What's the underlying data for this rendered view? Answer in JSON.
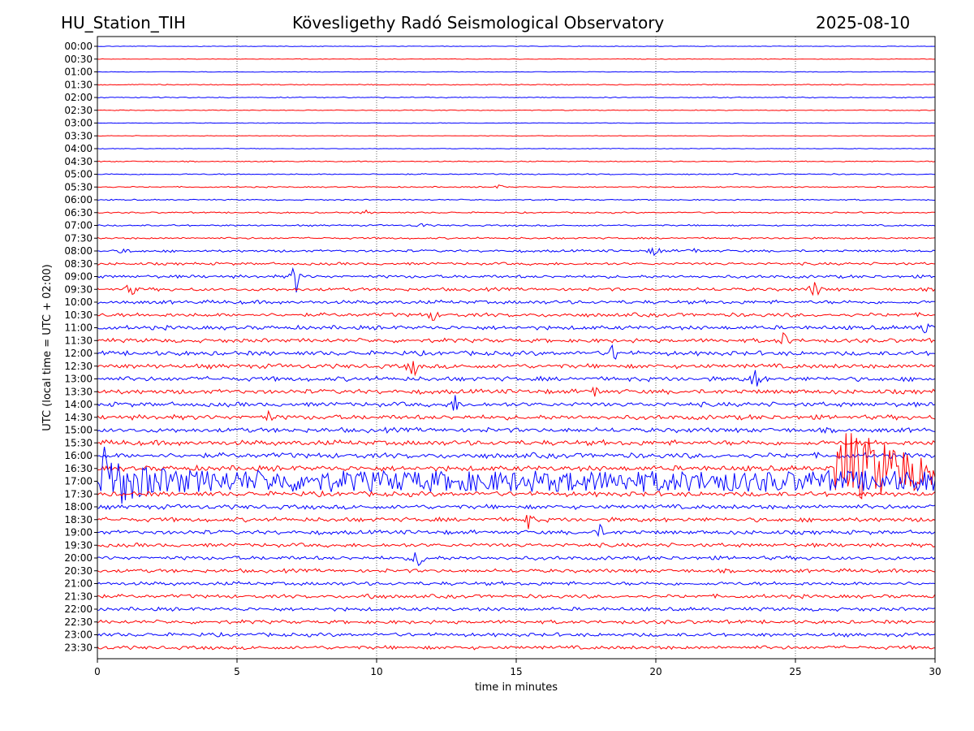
{
  "header": {
    "station": "HU_Station_TIH",
    "observatory": "Kövesligethy Radó Seismological Observatory",
    "date": "2025-08-10"
  },
  "chart_data": {
    "type": "line",
    "title": "Kövesligethy Radó Seismological Observatory",
    "xlabel": "time in minutes",
    "ylabel": "UTC (local time = UTC + 02:00)",
    "xlim": [
      0,
      30
    ],
    "x_ticks": [
      "0",
      "5",
      "10",
      "15",
      "20",
      "25",
      "30"
    ],
    "grid": "vertical dotted lines at each x tick",
    "row_labels": [
      "00:00",
      "00:30",
      "01:00",
      "01:30",
      "02:00",
      "02:30",
      "03:00",
      "03:30",
      "04:00",
      "04:30",
      "05:00",
      "05:30",
      "06:00",
      "06:30",
      "07:00",
      "07:30",
      "08:00",
      "08:30",
      "09:00",
      "09:30",
      "10:00",
      "10:30",
      "11:00",
      "11:30",
      "12:00",
      "12:30",
      "13:00",
      "13:30",
      "14:00",
      "14:30",
      "15:00",
      "15:30",
      "16:00",
      "16:30",
      "17:00",
      "17:30",
      "18:00",
      "18:30",
      "19:00",
      "19:30",
      "20:00",
      "20:30",
      "21:00",
      "21:30",
      "22:00",
      "22:30",
      "23:00",
      "23:30"
    ],
    "colors": {
      "even_rows": "#0000ff",
      "odd_rows": "#ff0000"
    },
    "noise_levels": [
      0.3,
      0.3,
      0.3,
      0.5,
      0.5,
      0.4,
      0.3,
      0.3,
      0.3,
      0.5,
      0.6,
      0.6,
      0.6,
      0.7,
      0.8,
      0.9,
      1.2,
      1.3,
      1.5,
      1.6,
      1.8,
      1.9,
      2.0,
      2.0,
      2.2,
      2.2,
      2.2,
      2.2,
      2.2,
      2.3,
      2.3,
      2.5,
      2.6,
      2.6,
      2.6,
      2.4,
      2.2,
      2.1,
      2.0,
      1.9,
      1.9,
      1.8,
      1.8,
      1.8,
      1.8,
      1.8,
      1.8,
      1.8
    ],
    "events": [
      {
        "row": 16,
        "minute": 20.0,
        "amp": 10
      },
      {
        "row": 16,
        "minute": 21.3,
        "amp": 6
      },
      {
        "row": 16,
        "minute": 1.0,
        "amp": 4
      },
      {
        "row": 18,
        "minute": 7.1,
        "amp": 24
      },
      {
        "row": 19,
        "minute": 1.2,
        "amp": 10
      },
      {
        "row": 19,
        "minute": 25.7,
        "amp": 14
      },
      {
        "row": 21,
        "minute": 12.0,
        "amp": 8
      },
      {
        "row": 22,
        "minute": 29.6,
        "amp": 12
      },
      {
        "row": 23,
        "minute": 24.6,
        "amp": 12
      },
      {
        "row": 24,
        "minute": 18.5,
        "amp": 14
      },
      {
        "row": 25,
        "minute": 11.3,
        "amp": 16
      },
      {
        "row": 26,
        "minute": 23.6,
        "amp": 20
      },
      {
        "row": 27,
        "minute": 17.8,
        "amp": 8
      },
      {
        "row": 28,
        "minute": 12.8,
        "amp": 12
      },
      {
        "row": 29,
        "minute": 6.1,
        "amp": 8
      },
      {
        "row": 37,
        "minute": 15.4,
        "amp": 14
      },
      {
        "row": 38,
        "minute": 18.0,
        "amp": 8
      },
      {
        "row": 40,
        "minute": 11.5,
        "amp": 18
      },
      {
        "row": 43,
        "minute": 9.7,
        "amp": 6
      },
      {
        "row": 14,
        "minute": 11.6,
        "amp": 4
      },
      {
        "row": 11,
        "minute": 14.4,
        "amp": 3
      },
      {
        "row": 13,
        "minute": 9.6,
        "amp": 3
      }
    ],
    "large_events": [
      {
        "row": 33,
        "start": 26.4,
        "amp": 40,
        "decay": 2.5
      },
      {
        "row": 34,
        "start": 0.1,
        "amp": 36,
        "decay": 1.0
      }
    ]
  }
}
